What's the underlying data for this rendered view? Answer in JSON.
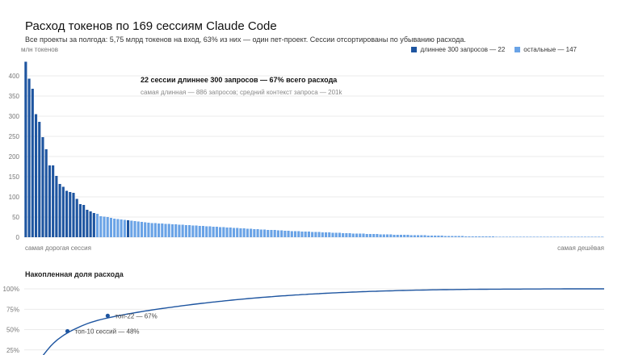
{
  "header": {
    "title": "Расход токенов по 169 сессиям Claude Code",
    "subtitle": "Все проекты за полгода: 5,75 млрд токенов на вход, 63% из них — один пет-проект. Сессии отсортированы по убыванию расхода."
  },
  "colors": {
    "long": "#1e55a0",
    "rest": "#6aa3e6",
    "grid": "#e4e4e4",
    "line": "#1e55a0"
  },
  "chart_data": [
    {
      "type": "bar",
      "ylabel": "млн токенов",
      "ylim": [
        0,
        440
      ],
      "yticks": [
        0,
        50,
        100,
        150,
        200,
        250,
        300,
        350,
        400
      ],
      "x_start_label": "самая дорогая сессия",
      "x_end_label": "самая дешёвая",
      "legend_position": "top-right",
      "series": [
        {
          "name": "длиннее 300 запросов — 22",
          "color": "#1e55a0",
          "indices": [
            0,
            1,
            2,
            3,
            4,
            5,
            6,
            7,
            8,
            9,
            10,
            11,
            12,
            13,
            14,
            15,
            16,
            17,
            18,
            19,
            20,
            30
          ]
        },
        {
          "name": "остальные — 147",
          "color": "#6aa3e6"
        }
      ],
      "values": [
        435,
        393,
        368,
        305,
        286,
        248,
        218,
        178,
        178,
        152,
        132,
        125,
        115,
        112,
        110,
        95,
        82,
        80,
        68,
        64,
        60,
        58,
        52,
        51,
        50,
        48,
        46,
        45,
        44,
        43,
        42,
        41,
        40,
        39,
        38,
        37,
        36,
        35,
        35,
        34,
        34,
        33,
        33,
        32,
        32,
        31,
        31,
        30,
        30,
        29,
        29,
        28,
        28,
        27,
        27,
        26,
        26,
        25,
        25,
        24,
        24,
        23,
        23,
        22,
        22,
        21,
        21,
        20,
        20,
        19,
        19,
        18,
        18,
        18,
        17,
        17,
        16,
        16,
        15,
        15,
        15,
        14,
        14,
        14,
        13,
        13,
        13,
        12,
        12,
        12,
        11,
        11,
        11,
        10,
        10,
        10,
        9,
        9,
        9,
        9,
        8,
        8,
        8,
        8,
        7,
        7,
        7,
        7,
        6,
        6,
        6,
        6,
        6,
        5,
        5,
        5,
        5,
        5,
        4,
        4,
        4,
        4,
        4,
        3,
        3,
        3,
        3,
        3,
        3,
        2,
        2,
        2,
        2,
        2,
        2,
        2,
        2,
        2,
        1,
        1,
        1,
        1,
        1,
        1,
        1,
        1,
        1,
        1,
        1,
        1,
        1,
        1,
        1,
        1,
        1,
        1,
        1,
        1,
        1,
        1,
        0,
        0,
        0,
        0,
        0,
        0,
        0,
        0,
        0,
        0
      ],
      "annotation": {
        "title": "22 сессии длиннее 300 запросов — 67% всего расхода",
        "subtitle": "самая длинная — 886 запросов; средний контекст запроса — 201k"
      }
    },
    {
      "type": "line",
      "title": "Накопленная доля расхода",
      "yticks": [
        "25%",
        "50%",
        "75%",
        "100%"
      ],
      "ylim": [
        0,
        100
      ],
      "markers": [
        {
          "session": 10,
          "value": 48,
          "label": "топ-10 сессий — 48%"
        },
        {
          "session": 22,
          "value": 67,
          "label": "топ-22 — 67%"
        }
      ]
    }
  ]
}
